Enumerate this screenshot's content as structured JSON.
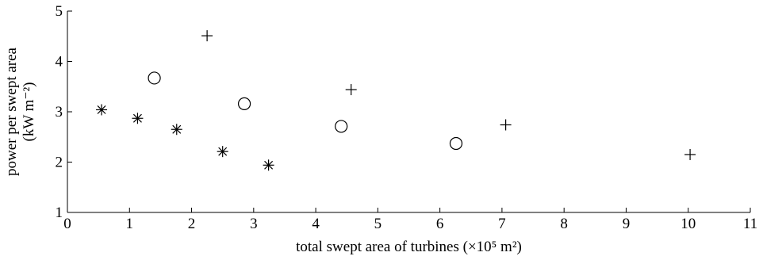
{
  "chart_data": {
    "type": "scatter",
    "xlabel": "total swept area of turbines (×10⁵ m²)",
    "ylabel_line1": "power per swept area",
    "ylabel_line2": "(kW m⁻²)",
    "xlim": [
      0,
      11
    ],
    "ylim": [
      1,
      5
    ],
    "xticks": [
      0,
      1,
      2,
      3,
      4,
      5,
      6,
      7,
      8,
      9,
      10,
      11
    ],
    "yticks": [
      1,
      2,
      3,
      4,
      5
    ],
    "grid": false,
    "series": [
      {
        "marker": "asterisk",
        "points": [
          [
            0.55,
            3.04
          ],
          [
            1.13,
            2.87
          ],
          [
            1.76,
            2.65
          ],
          [
            2.5,
            2.21
          ],
          [
            3.24,
            1.94
          ]
        ]
      },
      {
        "marker": "circle",
        "points": [
          [
            1.4,
            3.67
          ],
          [
            2.85,
            3.16
          ],
          [
            4.41,
            2.71
          ],
          [
            6.26,
            2.37
          ]
        ]
      },
      {
        "marker": "plus",
        "points": [
          [
            2.25,
            4.51
          ],
          [
            4.57,
            3.44
          ],
          [
            7.06,
            2.74
          ],
          [
            10.03,
            2.15
          ]
        ]
      }
    ]
  }
}
